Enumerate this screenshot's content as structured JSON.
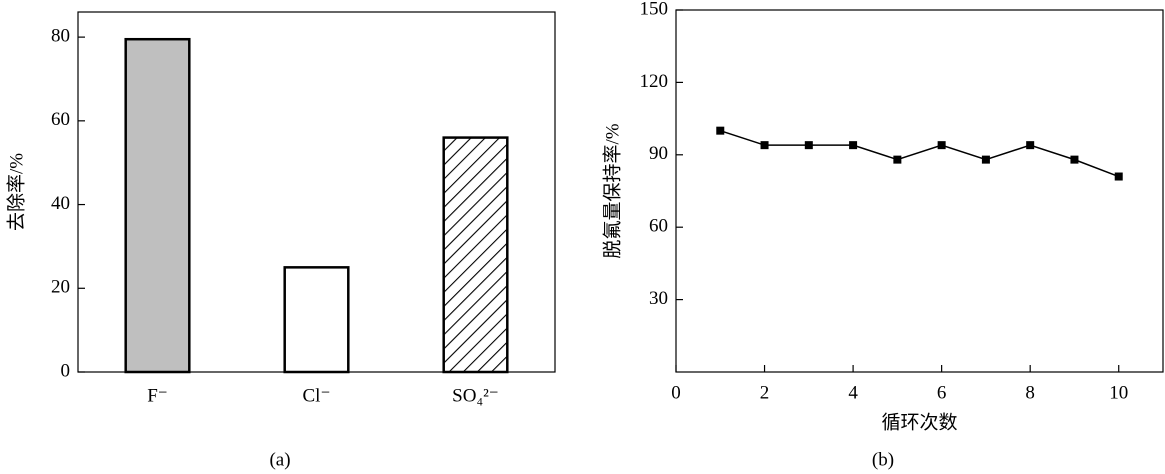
{
  "chart_data": [
    {
      "type": "bar",
      "ylabel": "去除率/%",
      "caption": "(a)",
      "categories": [
        "F⁻",
        "Cl⁻",
        "SO₄²⁻"
      ],
      "values": [
        79.5,
        25,
        56
      ],
      "colors": [
        "#bfbfbf",
        "#ffffff",
        "#ffffff"
      ],
      "hatch": [
        false,
        false,
        true
      ],
      "ylim": [
        0,
        86
      ],
      "yticks": [
        0,
        20,
        40,
        60,
        80
      ]
    },
    {
      "type": "line",
      "xlabel": "循环次数",
      "ylabel": "脱氟量保持率/%",
      "caption": "(b)",
      "x": [
        1,
        2,
        3,
        4,
        5,
        6,
        7,
        8,
        9,
        10
      ],
      "values": [
        100,
        94,
        94,
        94,
        88,
        94,
        88,
        94,
        88,
        81
      ],
      "color": "#000000",
      "xlim": [
        0,
        11
      ],
      "xticks": [
        0,
        2,
        4,
        6,
        8,
        10
      ],
      "ylim": [
        0,
        150
      ],
      "yticks": [
        30,
        60,
        90,
        120,
        150
      ]
    }
  ]
}
